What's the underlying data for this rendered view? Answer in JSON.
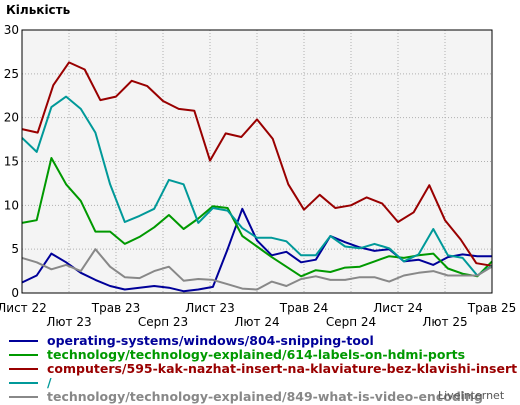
{
  "chart_data": {
    "type": "line",
    "ylabel": "Кількість",
    "ylim": [
      0,
      30
    ],
    "yticks": [
      0,
      5,
      10,
      15,
      20,
      25,
      30
    ],
    "grid": true,
    "legend_position": "bottom",
    "x_tick_labels": [
      "Лист 22",
      "Лют 23",
      "Трав 23",
      "Серп 23",
      "Лист 23",
      "Лют 24",
      "Трав 24",
      "Серп 24",
      "Лист 24",
      "Лют 25",
      "Трав 25"
    ],
    "n_points": 40,
    "series": [
      {
        "name": "operating-systems/windows/804-snipping-tool",
        "color": "#000099",
        "values": [
          1.2,
          2.0,
          4.5,
          3.5,
          2.3,
          1.5,
          0.8,
          0.4,
          0.6,
          0.8,
          0.6,
          0.2,
          0.4,
          0.7,
          5.0,
          9.6,
          6.0,
          4.3,
          4.7,
          3.5,
          3.8,
          6.5,
          5.8,
          5.2,
          4.8,
          5.0,
          3.6,
          3.8,
          3.2,
          4.1,
          4.4,
          4.2,
          4.2
        ]
      },
      {
        "name": "technology/technology-explained/614-labels-on-hdmi-ports",
        "color": "#009900",
        "values": [
          8.0,
          8.3,
          15.4,
          12.4,
          10.5,
          7.0,
          7.0,
          5.6,
          6.4,
          7.5,
          8.9,
          7.3,
          8.5,
          9.9,
          9.7,
          6.5,
          5.3,
          4.1,
          3.0,
          1.9,
          2.6,
          2.4,
          2.9,
          3.0,
          3.6,
          4.2,
          4.0,
          4.3,
          4.5,
          2.8,
          2.2,
          1.9,
          3.6
        ]
      },
      {
        "name": "computers/595-kak-nazhat-insert-na-klaviature-bez-klavishi-insert",
        "color": "#990000",
        "values": [
          18.7,
          18.3,
          23.7,
          26.3,
          25.5,
          22.0,
          22.4,
          24.2,
          23.6,
          21.9,
          21.0,
          20.8,
          15.1,
          18.2,
          17.8,
          19.8,
          17.6,
          12.4,
          9.5,
          11.2,
          9.7,
          10.0,
          10.9,
          10.2,
          8.1,
          9.2,
          12.3,
          8.3,
          6.1,
          3.4,
          3.1
        ]
      },
      {
        "name": "/",
        "color": "#009999",
        "values": [
          17.7,
          16.1,
          21.2,
          22.4,
          21.0,
          18.3,
          12.4,
          8.1,
          8.8,
          9.6,
          12.9,
          12.4,
          8.0,
          9.7,
          9.4,
          7.4,
          6.3,
          6.3,
          5.9,
          4.3,
          4.3,
          6.5,
          5.3,
          5.1,
          5.6,
          5.1,
          3.6,
          4.4,
          7.3,
          4.3,
          4.0,
          2.0,
          3.1
        ]
      },
      {
        "name": "technology/technology-explained/849-what-is-video-encoding",
        "color": "#888888",
        "values": [
          4.0,
          3.5,
          2.7,
          3.2,
          2.5,
          5.0,
          3.0,
          1.8,
          1.7,
          2.5,
          3.0,
          1.4,
          1.6,
          1.5,
          1.0,
          0.5,
          0.4,
          1.3,
          0.8,
          1.6,
          1.9,
          1.5,
          1.5,
          1.8,
          1.8,
          1.3,
          2.0,
          2.3,
          2.5,
          2.0,
          2.0,
          2.0,
          3.0
        ]
      }
    ]
  },
  "watermark": "LiveInternet"
}
